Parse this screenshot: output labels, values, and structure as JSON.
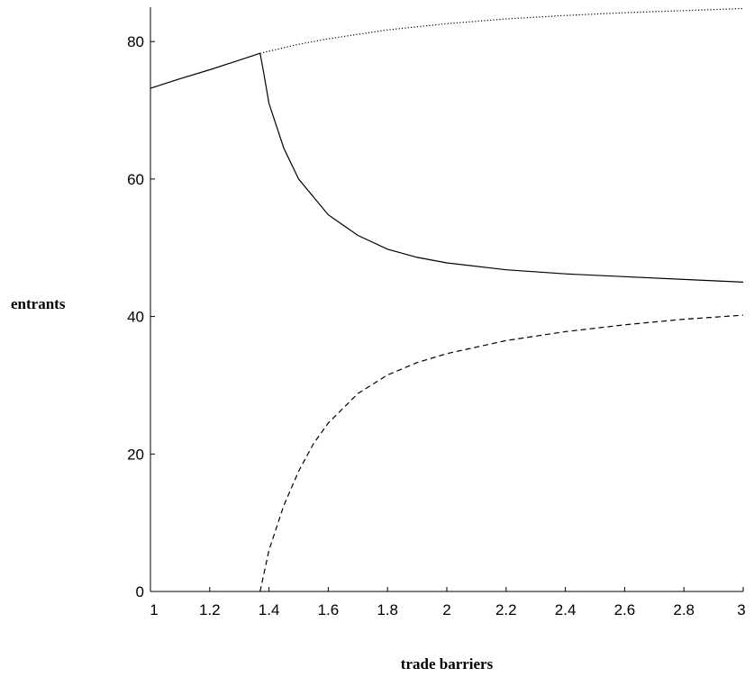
{
  "chart_data": {
    "type": "line",
    "title": "",
    "xlabel": "trade barriers",
    "ylabel": "entrants",
    "xlim": [
      1,
      3
    ],
    "ylim": [
      0,
      85
    ],
    "grid": false,
    "legend": "none",
    "x_ticks": [
      "1",
      "1.2",
      "1.4",
      "1.6",
      "1.8",
      "2",
      "2.2",
      "2.4",
      "2.6",
      "2.8",
      "3"
    ],
    "y_ticks": [
      "0",
      "20",
      "40",
      "60",
      "80"
    ],
    "series": [
      {
        "style": "solid",
        "color": "#000000",
        "points": [
          [
            1.0,
            73.2
          ],
          [
            1.1,
            74.6
          ],
          [
            1.2,
            75.9
          ],
          [
            1.3,
            77.3
          ],
          [
            1.37,
            78.3
          ]
        ]
      },
      {
        "style": "dotted",
        "color": "#000000",
        "points": [
          [
            1.37,
            78.3
          ],
          [
            1.4,
            78.6
          ],
          [
            1.5,
            79.6
          ],
          [
            1.6,
            80.4
          ],
          [
            1.8,
            81.7
          ],
          [
            2.0,
            82.6
          ],
          [
            2.2,
            83.3
          ],
          [
            2.4,
            83.8
          ],
          [
            2.6,
            84.2
          ],
          [
            2.8,
            84.5
          ],
          [
            3.0,
            84.8
          ]
        ]
      },
      {
        "style": "solid",
        "color": "#000000",
        "points": [
          [
            1.37,
            78.3
          ],
          [
            1.38,
            76.0
          ],
          [
            1.4,
            71.0
          ],
          [
            1.45,
            64.5
          ],
          [
            1.5,
            60.0
          ],
          [
            1.6,
            54.8
          ],
          [
            1.7,
            51.8
          ],
          [
            1.8,
            49.8
          ],
          [
            1.9,
            48.6
          ],
          [
            2.0,
            47.8
          ],
          [
            2.2,
            46.8
          ],
          [
            2.4,
            46.2
          ],
          [
            2.6,
            45.8
          ],
          [
            2.8,
            45.4
          ],
          [
            3.0,
            45.0
          ]
        ]
      },
      {
        "style": "dashed",
        "color": "#000000",
        "points": [
          [
            1.37,
            0.0
          ],
          [
            1.4,
            6.0
          ],
          [
            1.45,
            12.5
          ],
          [
            1.5,
            17.5
          ],
          [
            1.55,
            21.5
          ],
          [
            1.6,
            24.5
          ],
          [
            1.7,
            28.8
          ],
          [
            1.8,
            31.5
          ],
          [
            1.9,
            33.3
          ],
          [
            2.0,
            34.6
          ],
          [
            2.2,
            36.5
          ],
          [
            2.4,
            37.8
          ],
          [
            2.6,
            38.8
          ],
          [
            2.8,
            39.6
          ],
          [
            3.0,
            40.2
          ]
        ]
      }
    ]
  }
}
